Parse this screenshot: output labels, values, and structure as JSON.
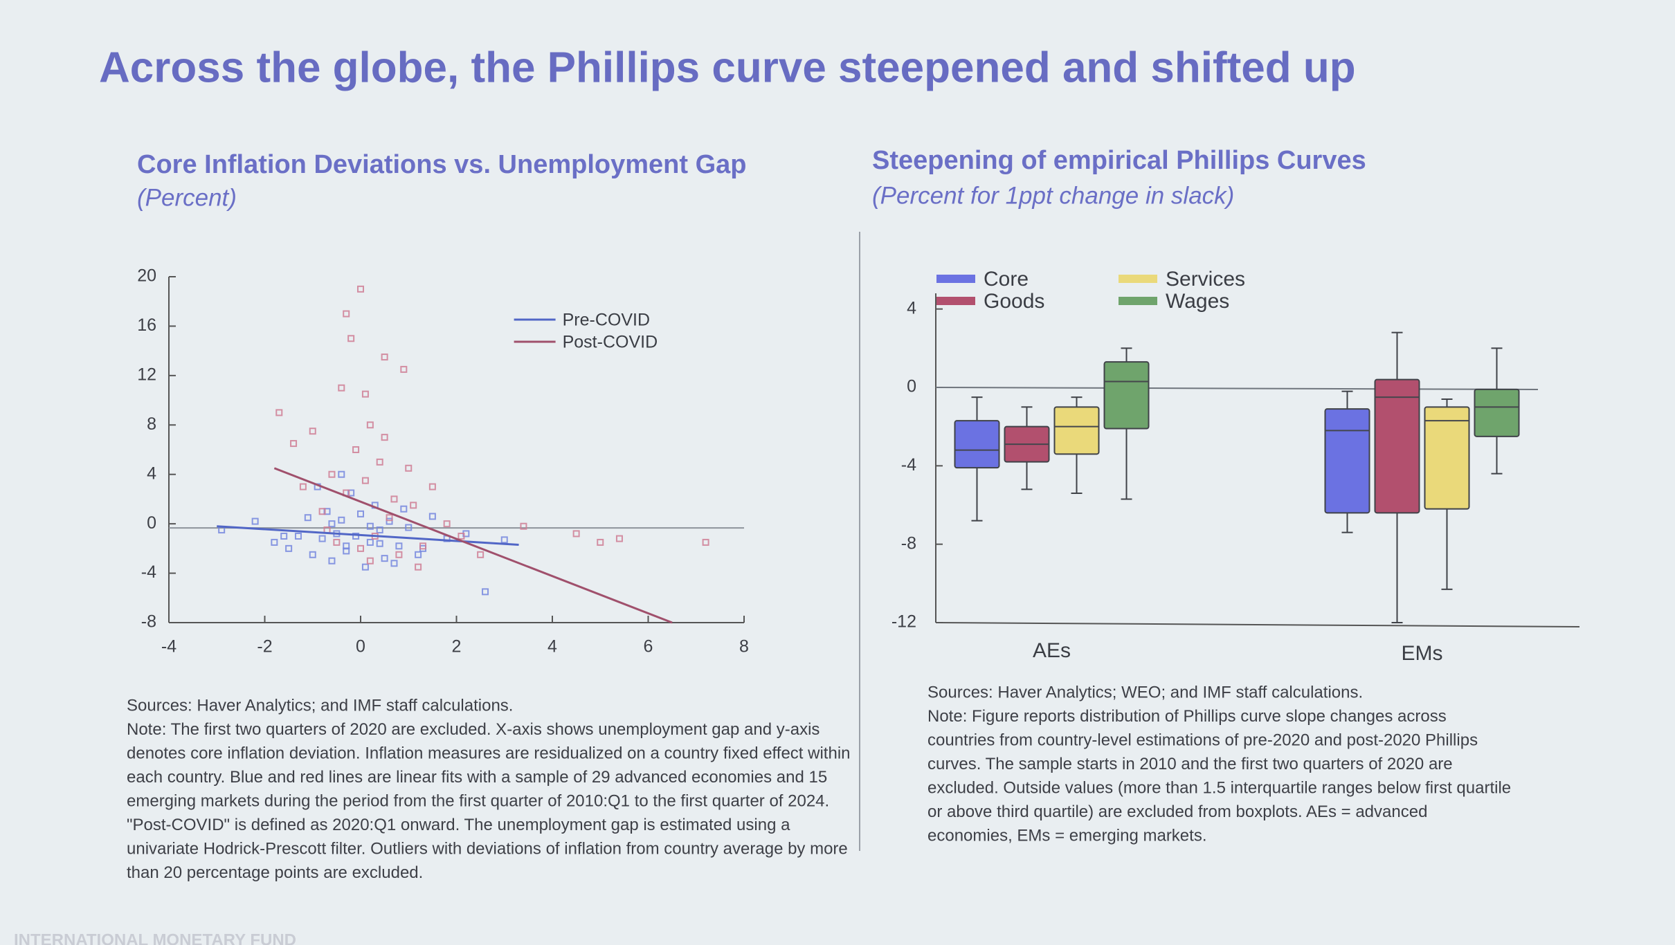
{
  "title": "Across the globe, the Phillips curve steepened and shifted up",
  "footer": "INTERNATIONAL MONETARY FUND",
  "chart_data": [
    {
      "type": "scatter",
      "title": "Core Inflation Deviations vs. Unemployment Gap",
      "subtitle": "(Percent)",
      "xlim": [
        -4,
        8
      ],
      "xticks": [
        -4,
        -2,
        0,
        2,
        4,
        6,
        8
      ],
      "ylim": [
        -8,
        20
      ],
      "yticks": [
        -8,
        -4,
        0,
        4,
        8,
        12,
        16,
        20
      ],
      "zero_line": true,
      "legend": "upper right",
      "series": [
        {
          "name": "Pre-COVID",
          "color": "#7486de",
          "line_color": "#5166c6",
          "x": [
            -2.9,
            -2.2,
            -1.8,
            -1.5,
            -1.3,
            -1.1,
            -1.0,
            -0.8,
            -0.7,
            -0.6,
            -0.5,
            -0.4,
            -0.3,
            -0.2,
            -0.1,
            0,
            0.1,
            0.2,
            0.3,
            0.4,
            0.5,
            0.6,
            0.8,
            1.0,
            1.2,
            1.5,
            1.8,
            2.2,
            2.6,
            3.0,
            -0.9,
            -0.3,
            0.2,
            0.7,
            -1.6,
            -0.4,
            0.9,
            1.3,
            -0.6,
            0.4
          ],
          "values": [
            -0.5,
            0.2,
            -1.5,
            -2.0,
            -1.0,
            0.5,
            -2.5,
            -1.2,
            1.0,
            -3.0,
            -0.8,
            0.3,
            -2.2,
            2.5,
            -1.0,
            0.8,
            -3.5,
            -1.5,
            1.5,
            -0.5,
            -2.8,
            0.2,
            -1.8,
            -0.3,
            -2.5,
            0.6,
            -1.2,
            -0.8,
            -5.5,
            -1.3,
            3.0,
            -1.8,
            -0.2,
            -3.2,
            -1.0,
            4.0,
            1.2,
            -2.0,
            0.0,
            -1.6
          ],
          "fit_x": [
            -3,
            3.3
          ],
          "fit_values": [
            -0.2,
            -1.7
          ]
        },
        {
          "name": "Post-COVID",
          "color": "#cf7c94",
          "line_color": "#a0506c",
          "x": [
            -1.7,
            -1.4,
            -1.2,
            -1.0,
            -0.8,
            -0.6,
            -0.5,
            -0.4,
            -0.3,
            -0.2,
            -0.1,
            0,
            0,
            0.1,
            0.1,
            0.2,
            0.3,
            0.4,
            0.5,
            0.6,
            0.7,
            0.8,
            0.9,
            1.0,
            1.1,
            1.3,
            1.5,
            1.8,
            2.1,
            2.5,
            3.4,
            4.5,
            5.0,
            5.4,
            7.2,
            -0.3,
            0.2,
            0.5,
            -0.7,
            1.2
          ],
          "values": [
            9.0,
            6.5,
            3.0,
            7.5,
            1.0,
            4.0,
            -1.5,
            11.0,
            2.5,
            15.0,
            6.0,
            19.0,
            -2.0,
            10.5,
            3.5,
            8.0,
            -1.0,
            5.0,
            13.5,
            0.5,
            2.0,
            -2.5,
            12.5,
            4.5,
            1.5,
            -1.8,
            3.0,
            0.0,
            -1.0,
            -2.5,
            -0.2,
            -0.8,
            -1.5,
            -1.2,
            -1.5,
            17.0,
            -3.0,
            7.0,
            -0.5,
            -3.5
          ],
          "fit_x": [
            -1.8,
            6.5
          ],
          "fit_values": [
            4.5,
            -8
          ]
        }
      ],
      "notes": [
        "Sources: Haver Analytics; and IMF staff calculations.",
        "Note: The first two quarters of 2020 are excluded. X-axis shows unemployment gap and y-axis",
        "denotes core inflation deviation. Inflation measures are residualized on a country fixed effect within",
        "each country. Blue and red lines are linear fits with a sample of 29 advanced economies and 15",
        "emerging markets during the period from the first quarter of 2010:Q1 to the first quarter of 2024.",
        "\"Post-COVID\" is defined as 2020:Q1 onward. The unemployment gap is estimated using a",
        "univariate Hodrick-Prescott filter. Outliers with deviations of inflation from country average by more",
        "than 20 percentage points are excluded."
      ]
    },
    {
      "type": "boxplot",
      "title": "Steepening of empirical Phillips Curves",
      "subtitle": "(Percent for 1ppt change in slack)",
      "categories": [
        "AEs",
        "EMs"
      ],
      "ylim": [
        -12,
        4.8
      ],
      "yticks": [
        -12,
        -8,
        -4,
        0,
        4
      ],
      "zero_line": true,
      "legend": "upper left",
      "series": [
        {
          "name": "Core",
          "color": "#6b72e2",
          "min": [
            -6.8,
            -7.4
          ],
          "q1": [
            -4.1,
            -6.4
          ],
          "median": [
            -3.2,
            -2.2
          ],
          "q3": [
            -1.7,
            -1.1
          ],
          "max": [
            -0.5,
            -0.2
          ]
        },
        {
          "name": "Goods",
          "color": "#b2506e",
          "min": [
            -5.2,
            -12
          ],
          "q1": [
            -3.8,
            -6.4
          ],
          "median": [
            -2.9,
            -0.5
          ],
          "q3": [
            -2.0,
            0.4
          ],
          "max": [
            -1.0,
            2.8
          ]
        },
        {
          "name": "Services",
          "color": "#ead97a",
          "min": [
            -5.4,
            -10.3
          ],
          "q1": [
            -3.4,
            -6.2
          ],
          "median": [
            -2.0,
            -1.7
          ],
          "q3": [
            -1.0,
            -1.0
          ],
          "max": [
            -0.5,
            -0.6
          ]
        },
        {
          "name": "Wages",
          "color": "#6fa46c",
          "min": [
            -5.7,
            -4.4
          ],
          "q1": [
            -2.1,
            -2.5
          ],
          "median": [
            0.3,
            -1.0
          ],
          "q3": [
            1.3,
            -0.1
          ],
          "max": [
            2.0,
            2.0
          ]
        }
      ],
      "notes": [
        "Sources: Haver Analytics; WEO; and IMF staff calculations.",
        "Note: Figure reports distribution of Phillips curve slope changes across",
        "countries from country-level estimations of pre-2020 and post-2020 Phillips",
        "curves. The sample starts in 2010 and the first two quarters of 2020 are",
        "excluded. Outside values (more than 1.5 interquartile ranges below first quartile",
        "or above third quartile) are excluded from boxplots. AEs = advanced",
        "economies, EMs = emerging markets."
      ]
    }
  ]
}
